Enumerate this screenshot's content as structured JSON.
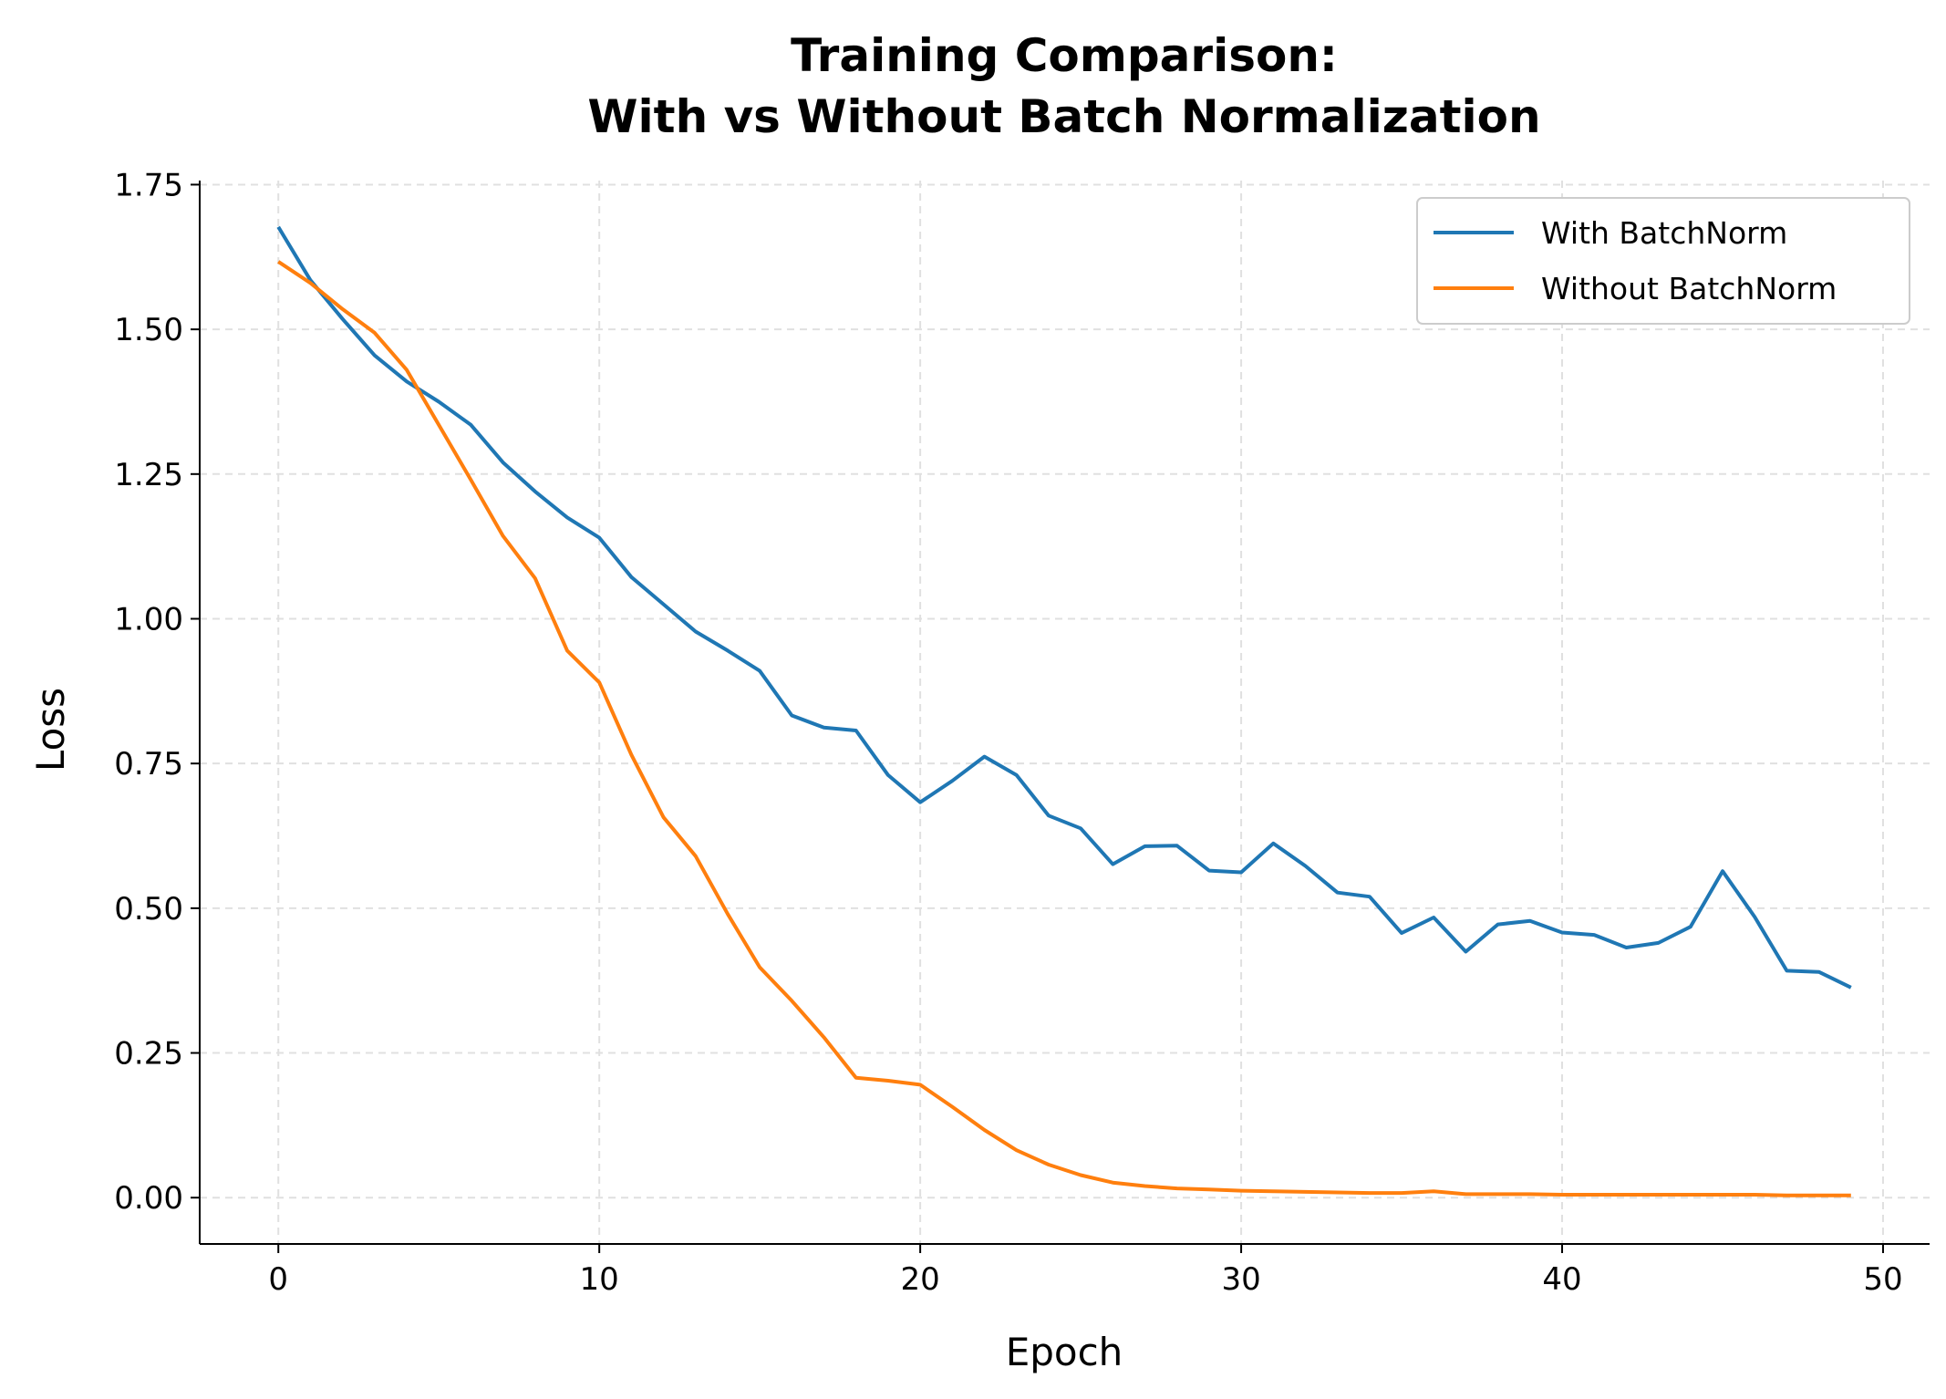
{
  "chart_data": {
    "type": "line",
    "title": "Training Comparison:\nWith vs Without Batch Normalization",
    "title_lines": [
      "Training Comparison:",
      "With vs Without Batch Normalization"
    ],
    "xlabel": "Epoch",
    "ylabel": "Loss",
    "xlim": [
      -2.45,
      51.45
    ],
    "ylim": [
      -0.08,
      1.757
    ],
    "xticks": [
      0,
      10,
      20,
      30,
      40,
      50
    ],
    "xtick_labels": [
      "0",
      "10",
      "20",
      "30",
      "40",
      "50"
    ],
    "yticks": [
      0,
      0.25,
      0.5,
      0.75,
      1.0,
      1.25,
      1.5,
      1.75
    ],
    "ytick_labels": [
      "0.00",
      "0.25",
      "0.50",
      "0.75",
      "1.00",
      "1.25",
      "1.50",
      "1.75"
    ],
    "grid": true,
    "legend_position": "top-right",
    "x": [
      0,
      1,
      2,
      3,
      4,
      5,
      6,
      7,
      8,
      9,
      10,
      11,
      12,
      13,
      14,
      15,
      16,
      17,
      18,
      19,
      20,
      21,
      22,
      23,
      24,
      25,
      26,
      27,
      28,
      29,
      30,
      31,
      32,
      33,
      34,
      35,
      36,
      37,
      38,
      39,
      40,
      41,
      42,
      43,
      44,
      45,
      46,
      47,
      48,
      49
    ],
    "series": [
      {
        "name": "With BatchNorm",
        "color": "#1f77b4",
        "values": [
          1.677,
          1.585,
          1.518,
          1.455,
          1.41,
          1.375,
          1.335,
          1.27,
          1.22,
          1.175,
          1.14,
          1.072,
          1.025,
          0.978,
          0.945,
          0.91,
          0.833,
          0.812,
          0.807,
          0.73,
          0.683,
          0.72,
          0.762,
          0.73,
          0.66,
          0.638,
          0.576,
          0.607,
          0.608,
          0.565,
          0.562,
          0.612,
          0.573,
          0.527,
          0.52,
          0.457,
          0.484,
          0.425,
          0.472,
          0.478,
          0.458,
          0.454,
          0.432,
          0.44,
          0.468,
          0.564,
          0.485,
          0.392,
          0.39,
          0.363
        ]
      },
      {
        "name": "Without BatchNorm",
        "color": "#ff7f0e",
        "values": [
          1.617,
          1.58,
          1.535,
          1.494,
          1.43,
          1.335,
          1.24,
          1.143,
          1.07,
          0.945,
          0.89,
          0.765,
          0.657,
          0.59,
          0.49,
          0.398,
          0.34,
          0.277,
          0.207,
          0.202,
          0.195,
          0.157,
          0.117,
          0.082,
          0.057,
          0.039,
          0.026,
          0.02,
          0.016,
          0.014,
          0.012,
          0.011,
          0.01,
          0.009,
          0.008,
          0.008,
          0.011,
          0.006,
          0.006,
          0.006,
          0.005,
          0.005,
          0.005,
          0.005,
          0.005,
          0.005,
          0.005,
          0.004,
          0.004,
          0.004
        ]
      }
    ]
  }
}
